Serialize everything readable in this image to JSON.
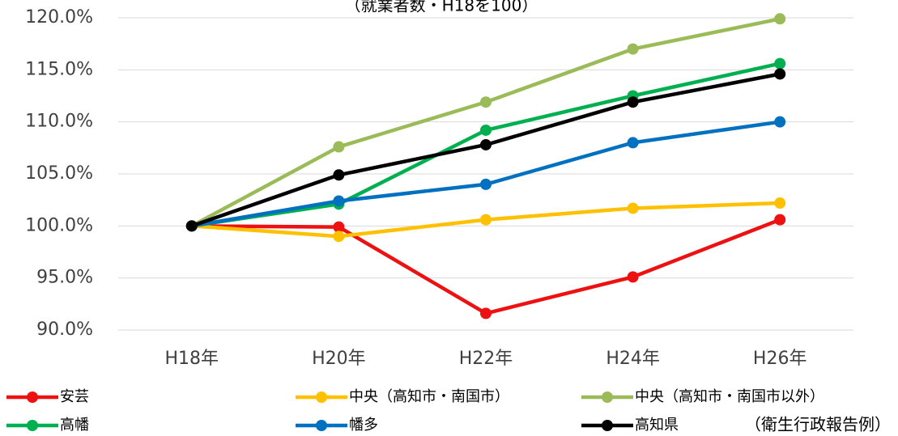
{
  "chart_data": {
    "type": "line",
    "title": "（就業者数・H18を100）",
    "annotation": "（衛生行政報告例）",
    "categories": [
      "H18年",
      "H20年",
      "H22年",
      "H24年",
      "H26年"
    ],
    "series": [
      {
        "name": "安芸",
        "color": "#ee1111",
        "values": [
          100,
          99.9,
          91.6,
          95.1,
          100.6
        ]
      },
      {
        "name": "中央（高知市・南国市）",
        "color": "#ffc000",
        "values": [
          100,
          99.0,
          100.6,
          101.7,
          102.2
        ]
      },
      {
        "name": "中央（高知市・南国市以外）",
        "color": "#9bbb59",
        "values": [
          100,
          107.6,
          111.9,
          117.0,
          119.9
        ]
      },
      {
        "name": "高幡",
        "color": "#00b050",
        "values": [
          100,
          102.1,
          109.2,
          112.5,
          115.6
        ]
      },
      {
        "name": "幡多",
        "color": "#0070c0",
        "values": [
          100,
          102.4,
          104.0,
          108.0,
          110.0
        ]
      },
      {
        "name": "高知県",
        "color": "#000000",
        "values": [
          100,
          104.9,
          107.8,
          111.9,
          114.6
        ]
      }
    ],
    "ylim": [
      90,
      120
    ],
    "yticks": [
      {
        "value": 90,
        "label": "90.0%"
      },
      {
        "value": 95,
        "label": "95.0%"
      },
      {
        "value": 100,
        "label": "100.0%"
      },
      {
        "value": 105,
        "label": "105.0%"
      },
      {
        "value": 110,
        "label": "110.0%"
      },
      {
        "value": 115,
        "label": "115.0%"
      },
      {
        "value": 120,
        "label": "120.0%"
      }
    ],
    "grid": true
  }
}
